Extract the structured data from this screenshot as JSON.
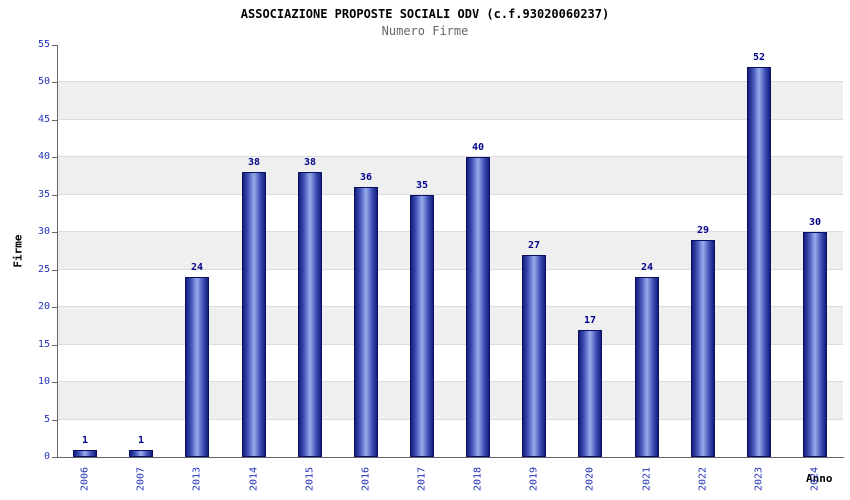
{
  "chart_data": {
    "type": "bar",
    "title": "ASSOCIAZIONE PROPOSTE SOCIALI ODV (c.f.93020060237)",
    "subtitle": "Numero Firme",
    "xlabel": "Anno",
    "ylabel": "Firme",
    "categories": [
      "2006",
      "2007",
      "2013",
      "2014",
      "2015",
      "2016",
      "2017",
      "2018",
      "2019",
      "2020",
      "2021",
      "2022",
      "2023",
      "2024"
    ],
    "values": [
      1,
      1,
      24,
      38,
      38,
      36,
      35,
      40,
      27,
      17,
      24,
      29,
      52,
      30
    ],
    "ylim": [
      0,
      55
    ],
    "ytick_step": 5,
    "grid": true,
    "legend": "none",
    "colors": {
      "bar_edge": "#141e7e",
      "bar_center": "#9aabec",
      "bar_border": "#0a1060",
      "tick_label": "#2233bb",
      "data_label": "#00008b",
      "band_alt": "#efefef",
      "gridline": "#dcdcdc",
      "axis": "#666666",
      "title": "#000000",
      "subtitle": "#666666"
    }
  }
}
